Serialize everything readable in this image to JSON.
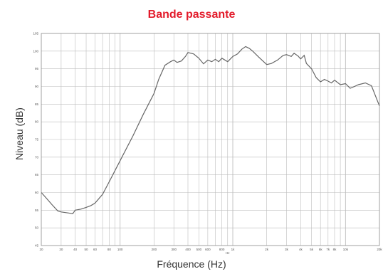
{
  "colors": {
    "title": "#e31b2b",
    "curve": "#666666",
    "grid": "#bdbdbd"
  },
  "chart_data": {
    "type": "line",
    "title": "Bande passante",
    "xlabel": "Fréquence (Hz)",
    "ylabel": "Niveau (dB)",
    "xscale": "log",
    "xlim": [
      20,
      20000
    ],
    "ylim": [
      45,
      105
    ],
    "grid": true,
    "xtick_labels": [
      "20",
      "30",
      "40",
      "50",
      "60",
      "80",
      "100",
      "200",
      "300",
      "400",
      "500",
      "600",
      "800",
      "1k",
      "2k",
      "3k",
      "4k",
      "5k",
      "6k",
      "7k",
      "8k",
      "10k",
      "20k"
    ],
    "ytick_labels": [
      "45",
      "50",
      "55",
      "60",
      "65",
      "70",
      "75",
      "80",
      "85",
      "90",
      "95",
      "100",
      "105"
    ],
    "x_axis_caption": "Hz",
    "series": [
      {
        "x": [
          20,
          22,
          25,
          28,
          30,
          35,
          38,
          40,
          45,
          50,
          55,
          60,
          70,
          80,
          100,
          130,
          160,
          200,
          220,
          250,
          280,
          300,
          320,
          350,
          380,
          400,
          450,
          500,
          550,
          600,
          650,
          700,
          750,
          800,
          900,
          1000,
          1100,
          1200,
          1300,
          1400,
          1500,
          1700,
          2000,
          2200,
          2500,
          2800,
          3000,
          3300,
          3500,
          3800,
          4000,
          4300,
          4500,
          5000,
          5500,
          6000,
          6500,
          7000,
          7500,
          8000,
          9000,
          10000,
          11000,
          12000,
          13000,
          15000,
          17000,
          20000
        ],
        "y": [
          60,
          58.5,
          56.5,
          54.8,
          54.5,
          54.2,
          54,
          55,
          55.3,
          55.8,
          56.3,
          57,
          59.5,
          63,
          69,
          76,
          82,
          88,
          92,
          96,
          97,
          97.5,
          96.8,
          97.2,
          98.5,
          99.6,
          99.2,
          98,
          96.4,
          97.5,
          97,
          97.7,
          97,
          98,
          97,
          98.5,
          99.2,
          100.5,
          101.3,
          100.8,
          100,
          98.3,
          96.2,
          96.5,
          97.5,
          98.8,
          99,
          98.5,
          99.4,
          98.6,
          97.8,
          98.8,
          96.5,
          95,
          92.5,
          91.3,
          92,
          91.5,
          91,
          91.8,
          90.5,
          90.8,
          89.5,
          90,
          90.5,
          91,
          90.2,
          84.5
        ]
      }
    ]
  }
}
